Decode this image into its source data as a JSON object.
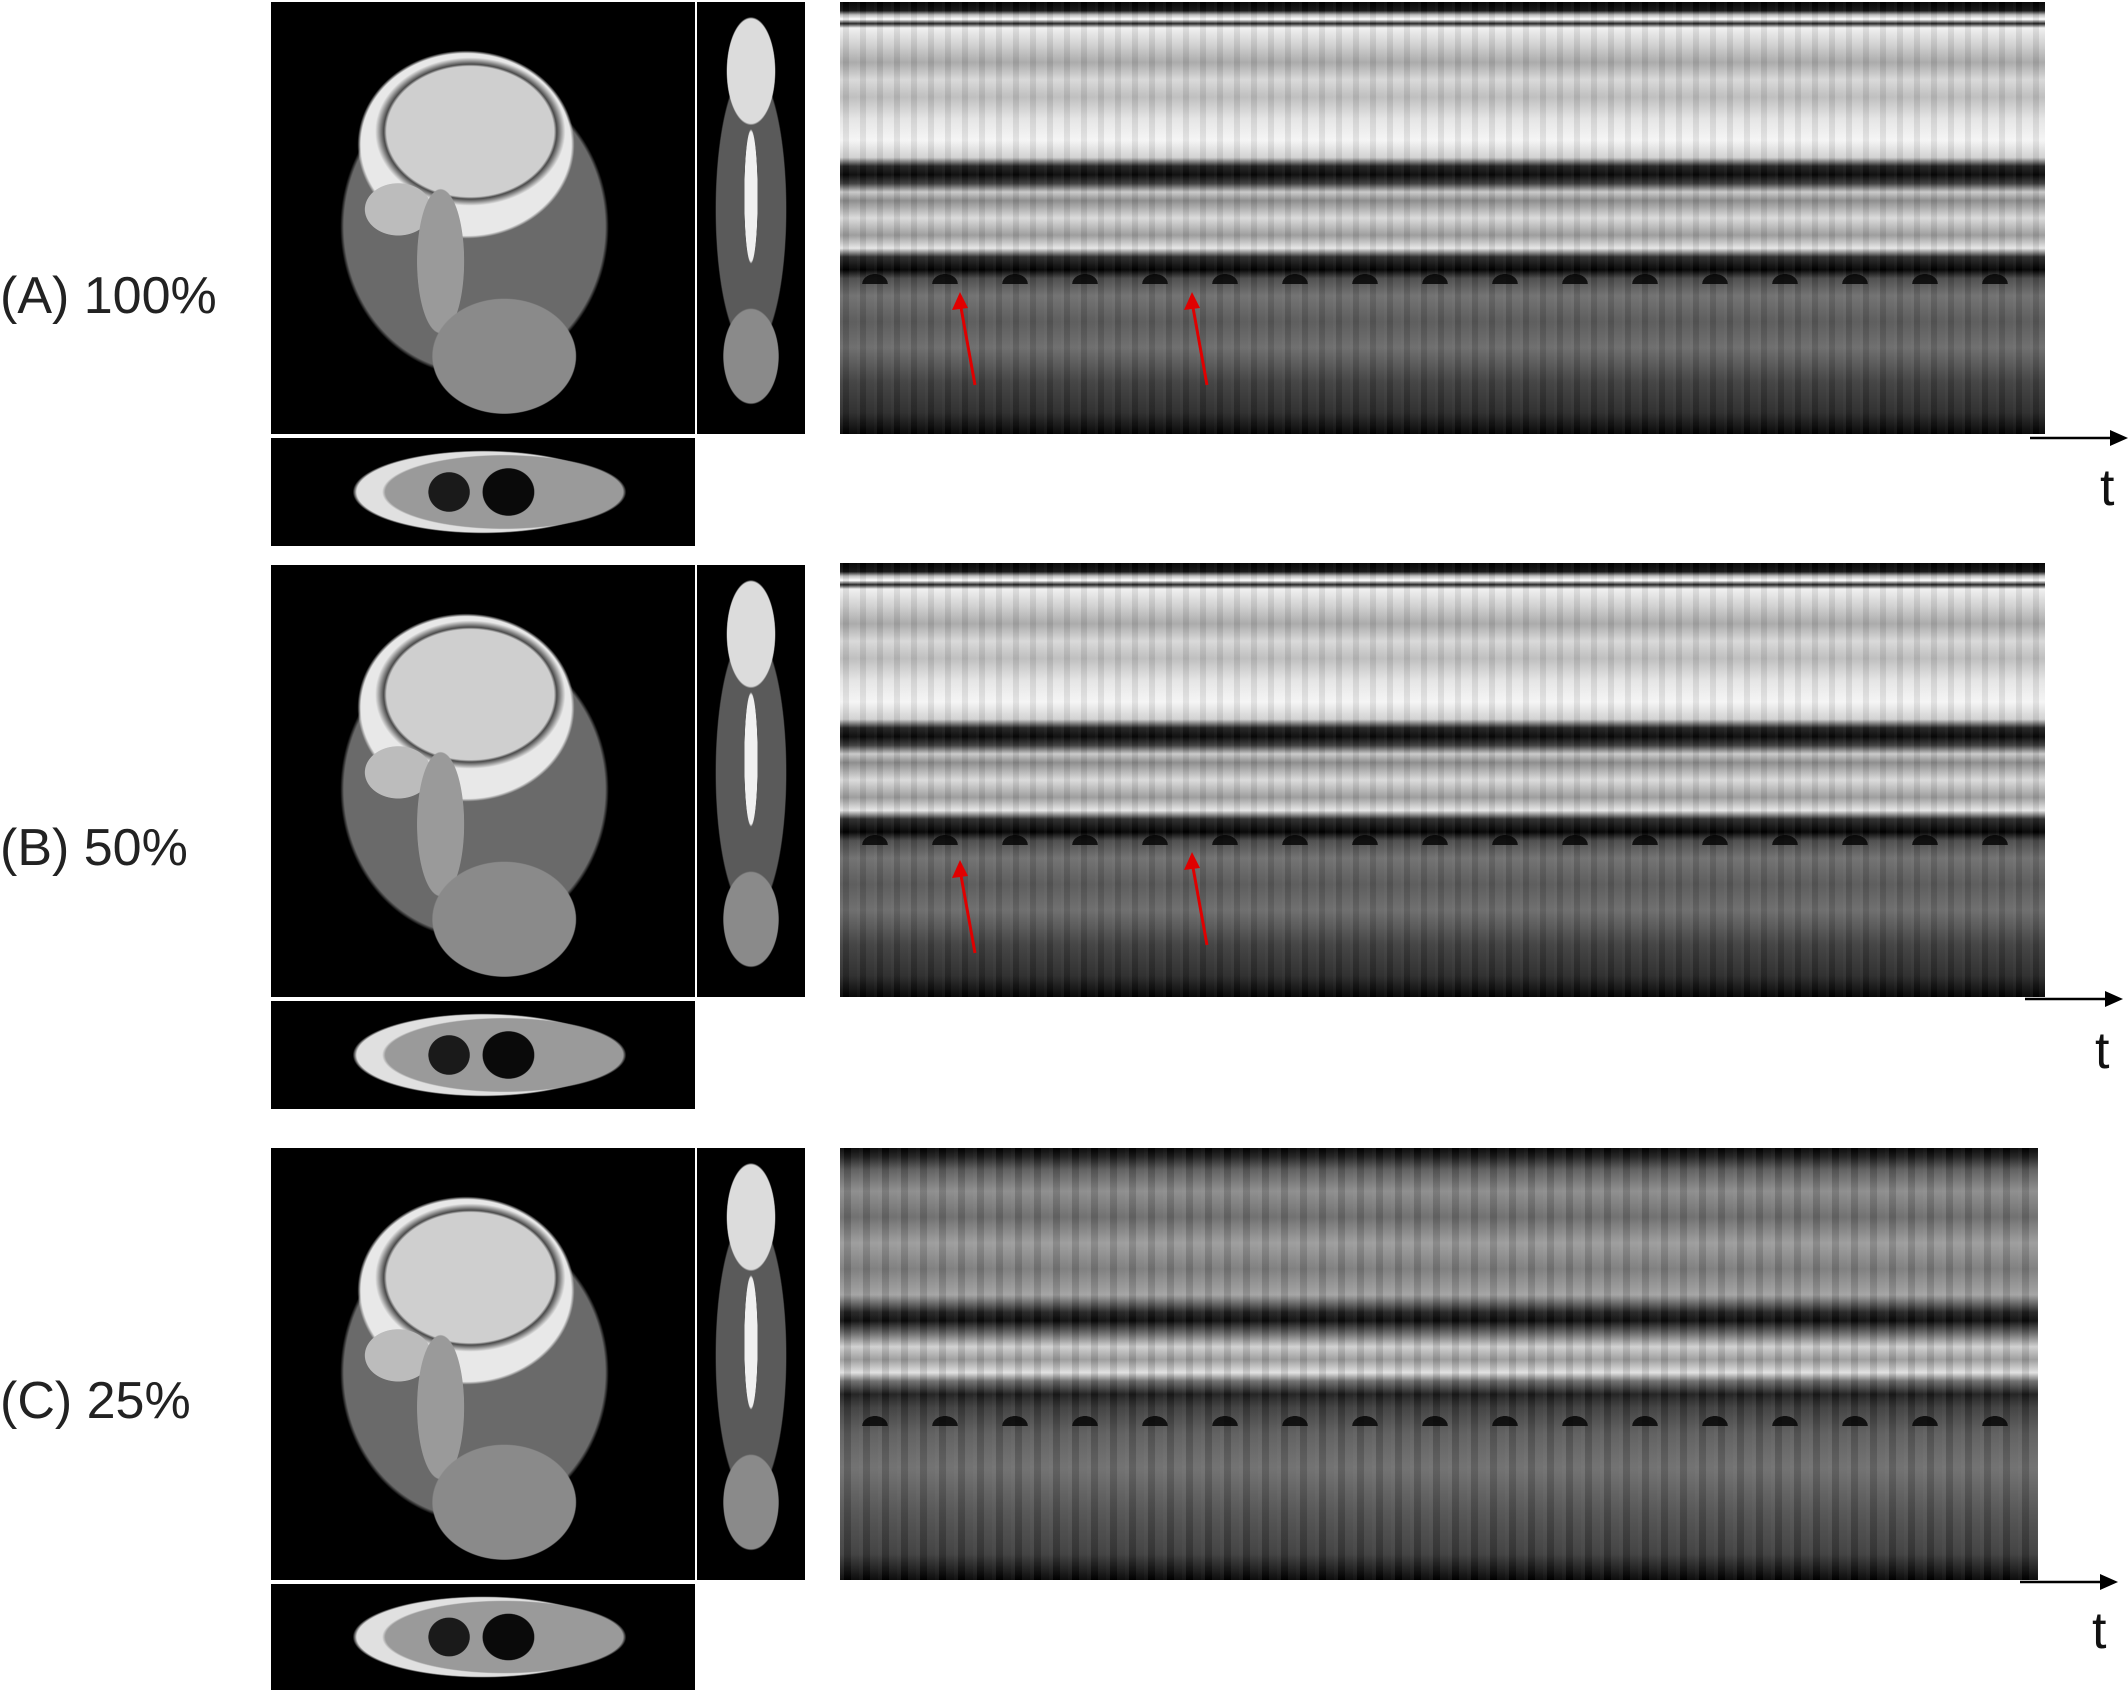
{
  "rows": [
    {
      "label": "(A) 100%",
      "time_label": "t"
    },
    {
      "label": "(B) 50%",
      "time_label": "t"
    },
    {
      "label": "(C) 25%",
      "time_label": "t"
    }
  ],
  "colors": {
    "arrow": "#e00000",
    "axis": "#000000"
  }
}
